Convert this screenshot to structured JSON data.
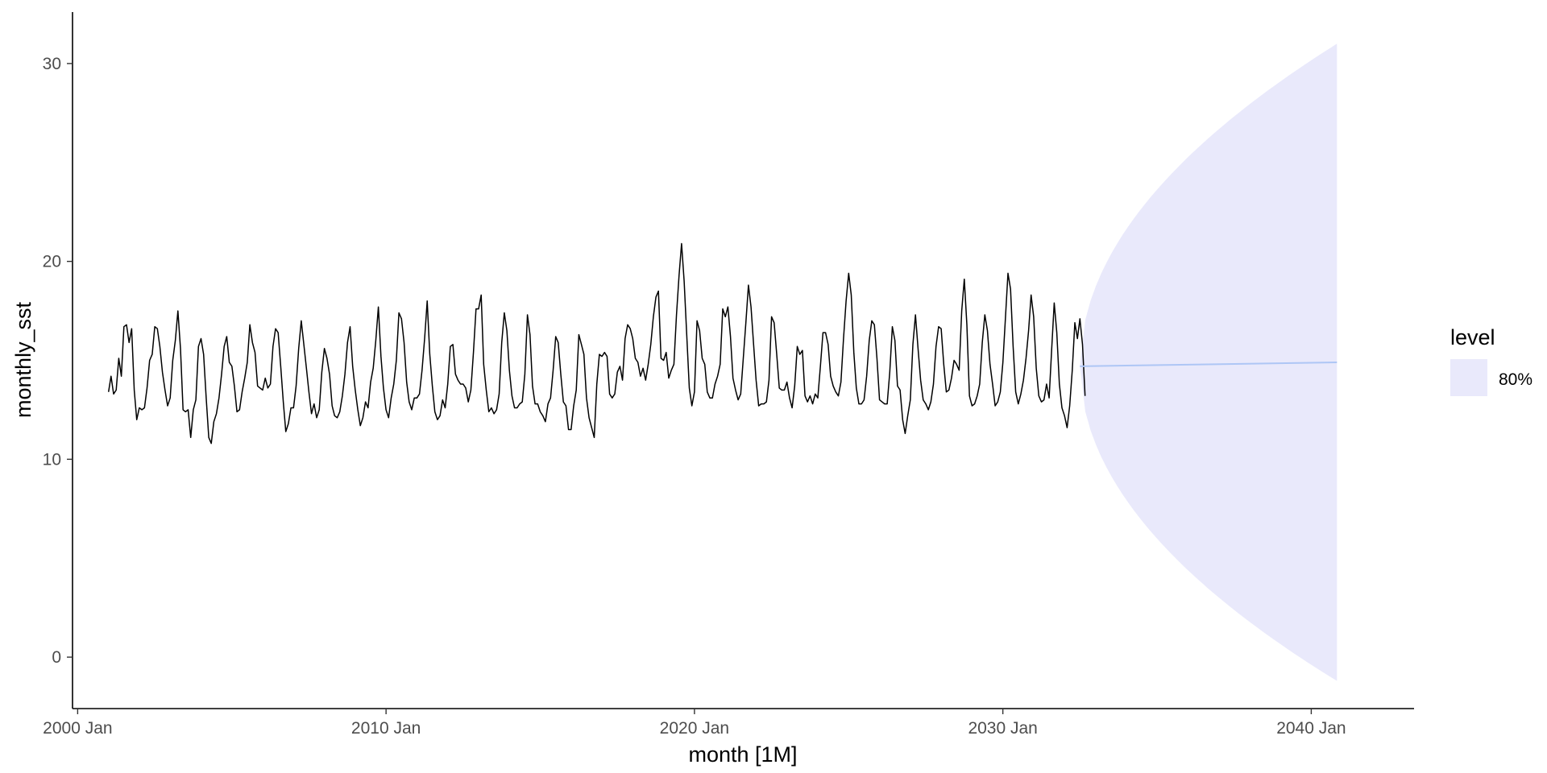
{
  "chart_data": {
    "type": "line",
    "title": "",
    "xlabel": "month [1M]",
    "ylabel": "monthly_sst",
    "x_ticks": [
      {
        "date": "2000-01",
        "label": "2000 Jan"
      },
      {
        "date": "2010-01",
        "label": "2010 Jan"
      },
      {
        "date": "2020-01",
        "label": "2020 Jan"
      },
      {
        "date": "2030-01",
        "label": "2030 Jan"
      },
      {
        "date": "2040-01",
        "label": "2040 Jan"
      }
    ],
    "y_ticks": [
      0,
      10,
      20,
      30
    ],
    "xlim": [
      "1999-11",
      "2043-05"
    ],
    "ylim": [
      -2.6,
      32.6
    ],
    "grid": false,
    "legend": {
      "title": "level",
      "position": "right",
      "entries": [
        {
          "label": "80%",
          "color": "#e9e9fb"
        }
      ]
    },
    "series": [
      {
        "kind": "observed",
        "color": "#000000",
        "start": "2001-01",
        "values": [
          13.4,
          14.2,
          13.3,
          13.5,
          15.1,
          14.2,
          16.7,
          16.8,
          15.9,
          16.6,
          13.5,
          12.0,
          12.6,
          12.5,
          12.6,
          13.6,
          15.0,
          15.3,
          16.7,
          16.6,
          15.7,
          14.4,
          13.5,
          12.7,
          13.1,
          15.0,
          16.0,
          17.5,
          15.6,
          12.5,
          12.4,
          12.5,
          11.1,
          12.5,
          13.0,
          15.7,
          16.1,
          15.3,
          13.1,
          11.1,
          10.8,
          11.9,
          12.3,
          13.1,
          14.3,
          15.7,
          16.2,
          14.9,
          14.7,
          13.7,
          12.4,
          12.5,
          13.4,
          14.1,
          14.9,
          16.8,
          15.9,
          15.4,
          13.7,
          13.6,
          13.5,
          14.1,
          13.6,
          13.8,
          15.7,
          16.6,
          16.4,
          14.7,
          12.9,
          11.4,
          11.8,
          12.6,
          12.6,
          13.7,
          15.6,
          17.0,
          15.8,
          14.6,
          13.4,
          12.3,
          12.8,
          12.1,
          12.5,
          14.4,
          15.6,
          15.1,
          14.3,
          12.7,
          12.2,
          12.1,
          12.4,
          13.2,
          14.3,
          15.9,
          16.7,
          14.7,
          13.5,
          12.5,
          11.7,
          12.1,
          12.9,
          12.6,
          13.9,
          14.6,
          16.0,
          17.7,
          15.2,
          13.6,
          12.5,
          12.1,
          13.1,
          13.8,
          15.0,
          17.4,
          17.1,
          15.9,
          13.9,
          12.9,
          12.5,
          13.1,
          13.1,
          13.3,
          14.5,
          16.1,
          18.0,
          15.3,
          13.7,
          12.4,
          12.0,
          12.2,
          13.0,
          12.6,
          13.8,
          15.7,
          15.8,
          14.3,
          14.0,
          13.8,
          13.8,
          13.6,
          12.9,
          13.5,
          15.4,
          17.6,
          17.6,
          18.3,
          14.8,
          13.5,
          12.4,
          12.6,
          12.3,
          12.5,
          13.3,
          15.9,
          17.4,
          16.5,
          14.5,
          13.2,
          12.6,
          12.6,
          12.8,
          12.9,
          14.3,
          17.3,
          16.3,
          13.7,
          12.8,
          12.8,
          12.4,
          12.2,
          11.9,
          12.8,
          13.1,
          14.5,
          16.2,
          15.9,
          14.3,
          12.9,
          12.7,
          11.5,
          11.5,
          12.7,
          13.5,
          16.3,
          15.8,
          15.3,
          13.1,
          12.1,
          11.6,
          11.1,
          13.8,
          15.3,
          15.2,
          15.4,
          15.2,
          13.3,
          13.1,
          13.3,
          14.4,
          14.7,
          14.0,
          16.1,
          16.8,
          16.6,
          16.1,
          15.1,
          14.9,
          14.2,
          14.6,
          14.0,
          14.8,
          15.8,
          17.2,
          18.2,
          18.5,
          15.1,
          15.0,
          15.4,
          14.1,
          14.5,
          14.8,
          17.3,
          19.3,
          20.9,
          19.0,
          16.3,
          13.6,
          12.7,
          13.4,
          17.0,
          16.5,
          15.1,
          14.8,
          13.4,
          13.1,
          13.1,
          13.8,
          14.2,
          14.8,
          17.6,
          17.2,
          17.7,
          16.2,
          14.1,
          13.5,
          13.0,
          13.3,
          15.1,
          16.9,
          18.8,
          17.7,
          15.8,
          14.0,
          12.7,
          12.8,
          12.8,
          12.9,
          14.0,
          17.2,
          16.9,
          15.3,
          13.6,
          13.5,
          13.5,
          13.9,
          13.1,
          12.6,
          13.7,
          15.7,
          15.3,
          15.5,
          13.2,
          12.9,
          13.2,
          12.8,
          13.3,
          13.1,
          14.7,
          16.4,
          16.4,
          15.8,
          14.2,
          13.7,
          13.4,
          13.2,
          13.9,
          16.1,
          18.0,
          19.4,
          18.3,
          15.4,
          13.6,
          12.8,
          12.8,
          13.0,
          14.2,
          16.0,
          17.0,
          16.8,
          15.1,
          13.0,
          12.9,
          12.8,
          12.8,
          14.4,
          16.7,
          16.0,
          13.7,
          13.5,
          12.0,
          11.3,
          12.2,
          13.0,
          15.8,
          17.3,
          15.6,
          14.0,
          13.0,
          12.8,
          12.5,
          12.9,
          13.8,
          15.7,
          16.7,
          16.6,
          14.8,
          13.4,
          13.5,
          14.1,
          15.0,
          14.8,
          14.5,
          17.5,
          19.1,
          16.8,
          13.2,
          12.7,
          12.8,
          13.2,
          13.8,
          15.9,
          17.3,
          16.5,
          14.8,
          13.8,
          12.7,
          12.9,
          13.4,
          14.9,
          17.1,
          19.4,
          18.6,
          15.7,
          13.4,
          12.8,
          13.3,
          14.0,
          15.1,
          16.5,
          18.3,
          17.2,
          14.6,
          13.2,
          12.9,
          13.0,
          13.8,
          13.1,
          15.6,
          17.9,
          16.4,
          13.8,
          12.6,
          12.2,
          11.6,
          12.7,
          14.5,
          16.9,
          16.1,
          17.1,
          15.8,
          13.2
        ]
      },
      {
        "kind": "forecast-mean",
        "color": "#aec6f5",
        "start": "2032-07",
        "end": "2040-11",
        "values": [
          14.7,
          14.9
        ]
      }
    ],
    "interval": {
      "level": "80%",
      "color": "#e9e9fb",
      "start": "2032-07",
      "end": "2040-11",
      "lower_end": -1.2,
      "upper_end": 31.0,
      "center": 14.7
    }
  }
}
